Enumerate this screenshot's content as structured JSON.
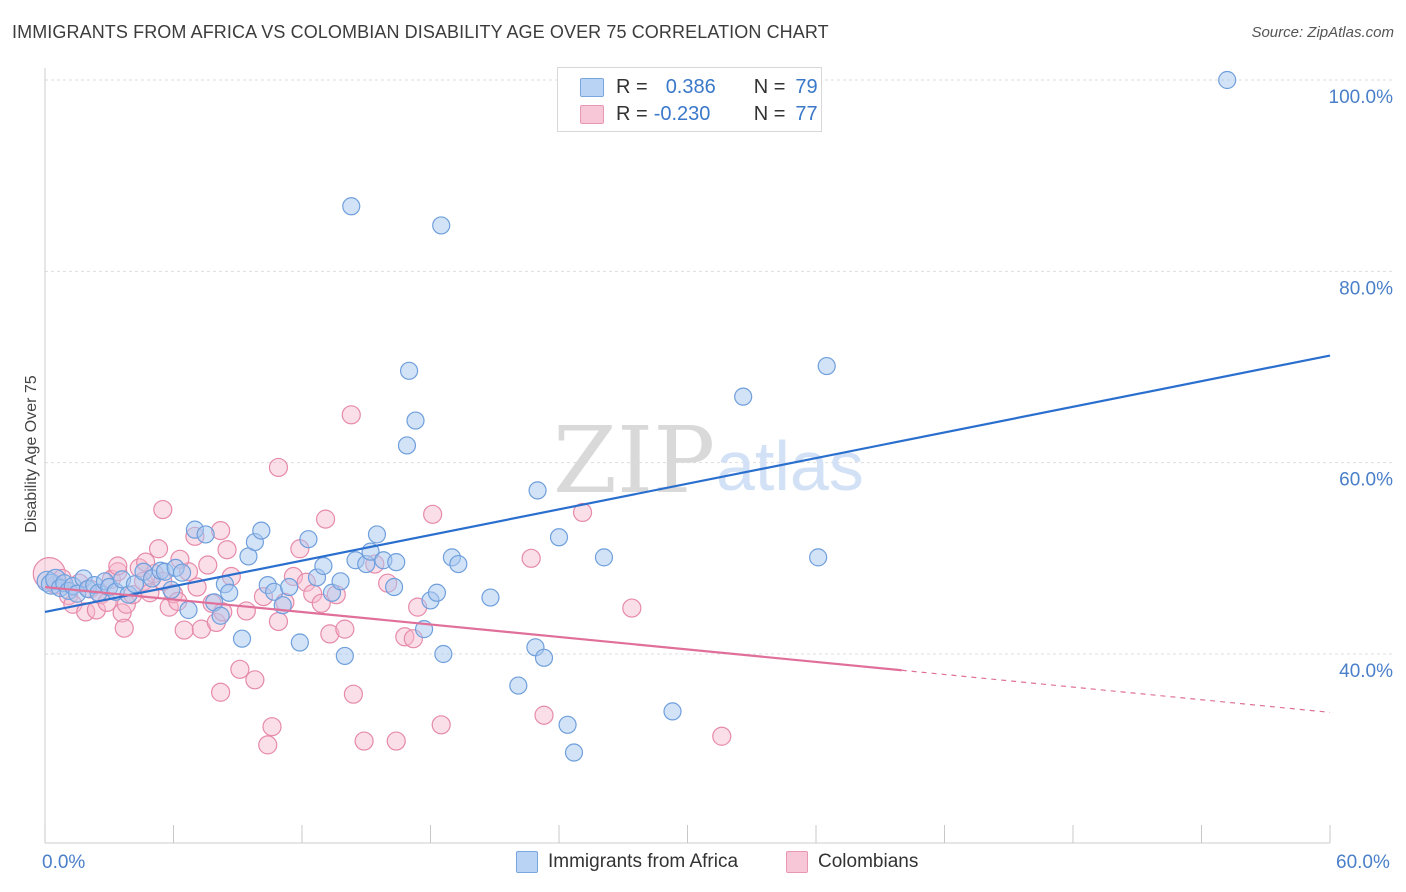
{
  "header": {
    "title": "IMMIGRANTS FROM AFRICA VS COLOMBIAN DISABILITY AGE OVER 75 CORRELATION CHART",
    "source": "Source: ZipAtlas.com"
  },
  "legend": {
    "rows": [
      {
        "r_label": "R =",
        "r_value": "0.386",
        "n_label": "N =",
        "n_value": "79"
      },
      {
        "r_label": "R =",
        "r_value": "-0.230",
        "n_label": "N =",
        "n_value": "77"
      }
    ]
  },
  "bottom_legend": [
    "Immigrants from Africa",
    "Colombians"
  ],
  "x_axis": {
    "min_label": "0.0%",
    "max_label": "60.0%"
  },
  "colors": {
    "blue_fill": "#a8c8f0",
    "blue_stroke": "#6f9fdc",
    "blue_line": "#2a6fce",
    "pink_fill": "#f6b8cc",
    "pink_stroke": "#e68aab",
    "pink_line": "#e0709a",
    "axis_text": "#4a7fc9",
    "grid": "#dddddd"
  },
  "chart_data": {
    "type": "scatter",
    "title": "IMMIGRANTS FROM AFRICA VS COLOMBIAN DISABILITY AGE OVER 75 CORRELATION CHART",
    "ylabel": "Disability Age Over 75",
    "xlabel": "",
    "xlim": [
      0,
      60
    ],
    "ylim": [
      20,
      104
    ],
    "y_ticks": [
      40,
      60,
      80,
      100
    ],
    "y_tick_labels": [
      "40.0%",
      "60.0%",
      "80.0%",
      "100.0%"
    ],
    "grid": true,
    "legend_position": "top-center",
    "watermark": "ZIPatlas",
    "series": [
      {
        "name": "Immigrants from Africa",
        "color": "#a8c8f0",
        "r": 0.386,
        "n": 79,
        "trend": {
          "x": [
            0,
            60
          ],
          "y": [
            44.4,
            71.2
          ]
        },
        "points": [
          [
            0.1,
            47.6
          ],
          [
            0.3,
            47.3
          ],
          [
            0.5,
            47.8
          ],
          [
            0.7,
            46.9
          ],
          [
            0.9,
            47.4
          ],
          [
            1.1,
            46.6
          ],
          [
            1.3,
            47.1
          ],
          [
            1.5,
            46.3
          ],
          [
            1.8,
            47.9
          ],
          [
            2.0,
            46.8
          ],
          [
            2.3,
            47.2
          ],
          [
            2.5,
            46.4
          ],
          [
            2.8,
            47.6
          ],
          [
            3.0,
            47.0
          ],
          [
            3.3,
            46.5
          ],
          [
            3.6,
            47.8
          ],
          [
            3.9,
            46.2
          ],
          [
            4.2,
            47.3
          ],
          [
            4.6,
            48.6
          ],
          [
            5.0,
            47.9
          ],
          [
            5.4,
            48.7
          ],
          [
            5.6,
            48.6
          ],
          [
            6.1,
            49.0
          ],
          [
            6.4,
            48.5
          ],
          [
            5.9,
            46.7
          ],
          [
            6.7,
            44.6
          ],
          [
            7.0,
            53.0
          ],
          [
            7.5,
            52.5
          ],
          [
            7.9,
            45.4
          ],
          [
            8.2,
            44.0
          ],
          [
            8.4,
            47.3
          ],
          [
            8.6,
            46.4
          ],
          [
            9.2,
            41.6
          ],
          [
            9.5,
            50.2
          ],
          [
            9.8,
            51.7
          ],
          [
            10.1,
            52.9
          ],
          [
            10.4,
            47.2
          ],
          [
            10.7,
            46.5
          ],
          [
            11.1,
            45.1
          ],
          [
            11.4,
            47.0
          ],
          [
            11.9,
            41.2
          ],
          [
            12.3,
            52.0
          ],
          [
            12.7,
            48.0
          ],
          [
            13.0,
            49.2
          ],
          [
            13.4,
            46.4
          ],
          [
            13.8,
            47.6
          ],
          [
            14.0,
            39.8
          ],
          [
            14.5,
            49.8
          ],
          [
            15.0,
            49.4
          ],
          [
            15.2,
            50.7
          ],
          [
            15.5,
            52.5
          ],
          [
            15.8,
            49.8
          ],
          [
            16.4,
            49.6
          ],
          [
            14.3,
            86.8
          ],
          [
            17.0,
            69.6
          ],
          [
            18.5,
            84.8
          ],
          [
            16.3,
            47.0
          ],
          [
            16.9,
            61.8
          ],
          [
            17.3,
            64.4
          ],
          [
            18.0,
            45.6
          ],
          [
            17.7,
            42.6
          ],
          [
            18.3,
            46.4
          ],
          [
            18.6,
            40.0
          ],
          [
            19.0,
            50.1
          ],
          [
            19.3,
            49.4
          ],
          [
            20.8,
            45.9
          ],
          [
            22.1,
            36.7
          ],
          [
            22.9,
            40.7
          ],
          [
            23.0,
            57.1
          ],
          [
            23.3,
            39.6
          ],
          [
            24.0,
            52.2
          ],
          [
            24.4,
            32.6
          ],
          [
            24.7,
            29.7
          ],
          [
            26.1,
            50.1
          ],
          [
            29.3,
            34.0
          ],
          [
            32.6,
            66.9
          ],
          [
            36.1,
            50.1
          ],
          [
            36.5,
            70.1
          ],
          [
            55.2,
            100.0
          ]
        ]
      },
      {
        "name": "Colombians",
        "color": "#f6b8cc",
        "r": -0.23,
        "n": 77,
        "trend": {
          "x": [
            0,
            40.0
          ],
          "y": [
            47.0,
            38.3
          ]
        },
        "trend_dashed": {
          "x": [
            40.0,
            60
          ],
          "y": [
            38.3,
            33.9
          ]
        },
        "points": [
          [
            0.2,
            48.4
          ],
          [
            0.5,
            47.2
          ],
          [
            0.8,
            47.9
          ],
          [
            1.1,
            46.1
          ],
          [
            1.3,
            45.2
          ],
          [
            1.6,
            47.4
          ],
          [
            1.9,
            44.4
          ],
          [
            2.1,
            46.8
          ],
          [
            2.4,
            44.6
          ],
          [
            2.6,
            46.2
          ],
          [
            2.9,
            45.4
          ],
          [
            3.1,
            47.8
          ],
          [
            3.4,
            48.6
          ],
          [
            3.6,
            44.3
          ],
          [
            3.8,
            45.2
          ],
          [
            3.7,
            42.7
          ],
          [
            4.1,
            46.2
          ],
          [
            4.4,
            49.0
          ],
          [
            4.6,
            47.6
          ],
          [
            4.9,
            46.4
          ],
          [
            5.1,
            48.4
          ],
          [
            5.3,
            51.0
          ],
          [
            5.5,
            47.6
          ],
          [
            5.8,
            44.9
          ],
          [
            6.0,
            46.3
          ],
          [
            6.2,
            45.5
          ],
          [
            6.5,
            42.5
          ],
          [
            6.7,
            48.6
          ],
          [
            7.1,
            47.0
          ],
          [
            7.3,
            42.6
          ],
          [
            7.6,
            49.3
          ],
          [
            7.8,
            45.3
          ],
          [
            8.0,
            43.3
          ],
          [
            8.3,
            44.4
          ],
          [
            8.5,
            50.9
          ],
          [
            8.7,
            48.1
          ],
          [
            9.1,
            38.4
          ],
          [
            9.4,
            44.5
          ],
          [
            8.2,
            36.0
          ],
          [
            9.8,
            37.3
          ],
          [
            10.2,
            46.0
          ],
          [
            10.4,
            30.5
          ],
          [
            10.6,
            32.4
          ],
          [
            10.9,
            43.4
          ],
          [
            11.2,
            45.4
          ],
          [
            11.6,
            48.1
          ],
          [
            11.9,
            51.0
          ],
          [
            12.2,
            47.5
          ],
          [
            12.5,
            46.3
          ],
          [
            12.9,
            45.3
          ],
          [
            13.1,
            54.1
          ],
          [
            13.3,
            42.1
          ],
          [
            13.6,
            46.2
          ],
          [
            14.0,
            42.6
          ],
          [
            14.4,
            35.8
          ],
          [
            14.9,
            30.9
          ],
          [
            15.4,
            49.4
          ],
          [
            16.0,
            47.4
          ],
          [
            16.4,
            30.9
          ],
          [
            16.8,
            41.8
          ],
          [
            17.4,
            44.9
          ],
          [
            17.2,
            41.6
          ],
          [
            18.1,
            54.6
          ],
          [
            18.5,
            32.6
          ],
          [
            14.3,
            65.0
          ],
          [
            10.9,
            59.5
          ],
          [
            6.3,
            49.9
          ],
          [
            4.7,
            49.6
          ],
          [
            3.4,
            49.2
          ],
          [
            8.2,
            52.9
          ],
          [
            5.5,
            55.1
          ],
          [
            7.0,
            52.3
          ],
          [
            22.7,
            50.0
          ],
          [
            23.3,
            33.6
          ],
          [
            25.1,
            54.8
          ],
          [
            27.4,
            44.8
          ],
          [
            31.6,
            31.4
          ]
        ]
      }
    ]
  }
}
